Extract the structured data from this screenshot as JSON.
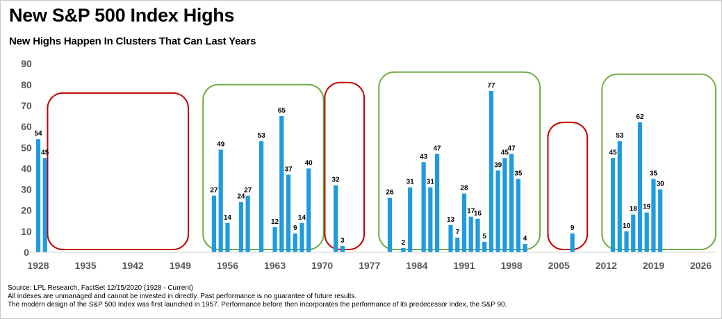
{
  "header": {
    "title": "New S&P 500 Index Highs",
    "subtitle": "New Highs Happen In Clusters That Can Last Years"
  },
  "notes": [
    "Source: LPL Research, FactSet 12/15/2020 (1928 - Current)",
    "All indexes are unmanaged and cannot be invested in directly. Past performance is no guarantee of future results.",
    "The modern design of the S&P 500 Index was first launched in 1957. Performance before then incorporates the performance of its predecessor index, the S&P 90."
  ],
  "chart_data": {
    "type": "bar",
    "title": "New S&P 500 Index Highs",
    "subtitle": "New Highs Happen In Clusters That Can Last Years",
    "xlabel": "",
    "ylabel": "",
    "ylim": [
      0,
      90
    ],
    "xlim": [
      1928,
      2027
    ],
    "y_ticks": [
      0,
      10,
      20,
      30,
      40,
      50,
      60,
      70,
      80,
      90
    ],
    "x_ticks": [
      1928,
      1935,
      1942,
      1949,
      1956,
      1963,
      1970,
      1977,
      1984,
      1991,
      1998,
      2005,
      2012,
      2019,
      2026
    ],
    "grid": false,
    "legend": "none",
    "bar_color": "#1f9bde",
    "series": [
      {
        "points": [
          {
            "x": 1928,
            "y": 54
          },
          {
            "x": 1929,
            "y": 45
          },
          {
            "x": 1954,
            "y": 27
          },
          {
            "x": 1955,
            "y": 49
          },
          {
            "x": 1956,
            "y": 14
          },
          {
            "x": 1958,
            "y": 24
          },
          {
            "x": 1959,
            "y": 27
          },
          {
            "x": 1961,
            "y": 53
          },
          {
            "x": 1963,
            "y": 12
          },
          {
            "x": 1964,
            "y": 65
          },
          {
            "x": 1965,
            "y": 37
          },
          {
            "x": 1966,
            "y": 9
          },
          {
            "x": 1967,
            "y": 14
          },
          {
            "x": 1968,
            "y": 40
          },
          {
            "x": 1972,
            "y": 32
          },
          {
            "x": 1973,
            "y": 3
          },
          {
            "x": 1980,
            "y": 26
          },
          {
            "x": 1982,
            "y": 2
          },
          {
            "x": 1983,
            "y": 31
          },
          {
            "x": 1985,
            "y": 43
          },
          {
            "x": 1986,
            "y": 31
          },
          {
            "x": 1987,
            "y": 47
          },
          {
            "x": 1989,
            "y": 13
          },
          {
            "x": 1990,
            "y": 7
          },
          {
            "x": 1991,
            "y": 28
          },
          {
            "x": 1992,
            "y": 17
          },
          {
            "x": 1993,
            "y": 16
          },
          {
            "x": 1994,
            "y": 5
          },
          {
            "x": 1995,
            "y": 77
          },
          {
            "x": 1996,
            "y": 39
          },
          {
            "x": 1997,
            "y": 45
          },
          {
            "x": 1998,
            "y": 47
          },
          {
            "x": 1999,
            "y": 35
          },
          {
            "x": 2000,
            "y": 4
          },
          {
            "x": 2007,
            "y": 9
          },
          {
            "x": 2013,
            "y": 45
          },
          {
            "x": 2014,
            "y": 53
          },
          {
            "x": 2015,
            "y": 10
          },
          {
            "x": 2016,
            "y": 18
          },
          {
            "x": 2017,
            "y": 62
          },
          {
            "x": 2018,
            "y": 19
          },
          {
            "x": 2019,
            "y": 35
          },
          {
            "x": 2020,
            "y": 30
          }
        ]
      }
    ],
    "clusters": [
      {
        "type": "no-new-highs",
        "color": "#c00000",
        "x_range": [
          1930,
          1950
        ]
      },
      {
        "type": "new-highs",
        "color": "#70ad47",
        "x_range": [
          1953,
          1970
        ]
      },
      {
        "type": "no-new-highs",
        "color": "#c00000",
        "x_range": [
          1971,
          1976
        ]
      },
      {
        "type": "new-highs",
        "color": "#70ad47",
        "x_range": [
          1979,
          2002
        ]
      },
      {
        "type": "no-new-highs",
        "color": "#c00000",
        "x_range": [
          2004,
          2009
        ]
      },
      {
        "type": "new-highs",
        "color": "#70ad47",
        "x_range": [
          2012,
          2028
        ]
      }
    ]
  }
}
